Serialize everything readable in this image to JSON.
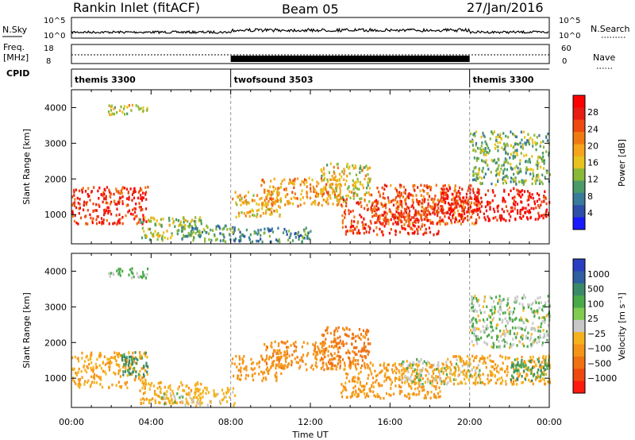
{
  "header": {
    "station": "Rankin Inlet (fitACF)",
    "beam": "Beam 05",
    "date": "27/Jan/2016"
  },
  "summary_panels": {
    "nsky": {
      "label": "N.Sky",
      "scale_top": "10^5",
      "scale_bottom": "10^0"
    },
    "nsearch": {
      "label": "N.Search",
      "scale_top": "10^5",
      "scale_bottom": "10^0"
    },
    "freq": {
      "label_line1": "Freq.",
      "label_line2": "[MHz]",
      "scale_top": "18",
      "scale_bottom": "8"
    },
    "nave": {
      "label": "Nave",
      "scale_top": "60",
      "scale_bottom": "0"
    },
    "cpid": {
      "label": "CPID",
      "segments": [
        {
          "name": "themis 3300",
          "start_hour": 0,
          "end_hour": 8
        },
        {
          "name": "twofsound 3503",
          "start_hour": 8,
          "end_hour": 20
        },
        {
          "name": "themis 3300",
          "start_hour": 20,
          "end_hour": 24
        }
      ]
    }
  },
  "chart_data": [
    {
      "type": "heatmap",
      "title": "",
      "xlabel": "Time UT",
      "ylabel": "Slant Range [km]",
      "x_ticks": [
        "00:00",
        "04:00",
        "08:00",
        "12:00",
        "16:00",
        "20:00",
        "00:00"
      ],
      "x_range_hours": [
        0,
        24
      ],
      "y_ticks": [
        1000,
        2000,
        3000,
        4000
      ],
      "ylim": [
        180,
        4500
      ],
      "colorbar": {
        "label": "Power [dB]",
        "ticks": [
          "4",
          "8",
          "12",
          "16",
          "20",
          "24",
          "28"
        ],
        "colors": [
          "#1a1aff",
          "#2d4fa8",
          "#3a7a9a",
          "#4a9a6a",
          "#8ab838",
          "#e8c21e",
          "#f5a41c",
          "#f07a12",
          "#ee4a10",
          "#e81c10",
          "#ff0000"
        ]
      },
      "echo_regions": [
        {
          "t0": 0.0,
          "t1": 3.8,
          "r0": 700,
          "r1": 1750,
          "value": 27
        },
        {
          "t0": 3.4,
          "t1": 6.5,
          "r0": 250,
          "r1": 900,
          "value": 14
        },
        {
          "t0": 5.5,
          "t1": 8.2,
          "r0": 200,
          "r1": 700,
          "value": 10
        },
        {
          "t0": 1.8,
          "t1": 3.8,
          "r0": 3750,
          "r1": 4050,
          "value": 16
        },
        {
          "t0": 8.0,
          "t1": 10.5,
          "r0": 900,
          "r1": 1600,
          "value": 18
        },
        {
          "t0": 9.5,
          "t1": 13.5,
          "r0": 1200,
          "r1": 2000,
          "value": 20
        },
        {
          "t0": 8.0,
          "t1": 12.0,
          "r0": 200,
          "r1": 600,
          "value": 9
        },
        {
          "t0": 12.5,
          "t1": 15.0,
          "r0": 1300,
          "r1": 2400,
          "value": 16
        },
        {
          "t0": 13.5,
          "t1": 18.5,
          "r0": 400,
          "r1": 1400,
          "value": 26
        },
        {
          "t0": 15.0,
          "t1": 20.5,
          "r0": 700,
          "r1": 1800,
          "value": 24
        },
        {
          "t0": 18.5,
          "t1": 24.0,
          "r0": 800,
          "r1": 1700,
          "value": 29
        },
        {
          "t0": 20.0,
          "t1": 24.0,
          "r0": 1800,
          "r1": 3300,
          "value": 12
        }
      ]
    },
    {
      "type": "heatmap",
      "title": "",
      "xlabel": "Time UT",
      "ylabel": "Slant Range [km]",
      "x_ticks": [
        "00:00",
        "04:00",
        "08:00",
        "12:00",
        "16:00",
        "20:00",
        "00:00"
      ],
      "x_range_hours": [
        0,
        24
      ],
      "y_ticks": [
        1000,
        2000,
        3000,
        4000
      ],
      "ylim": [
        180,
        4500
      ],
      "colorbar": {
        "label": "Velocity [m s⁻¹]",
        "ticks": [
          "1000",
          "500",
          "100",
          "25",
          "−25",
          "−100",
          "−500",
          "−1000"
        ],
        "colors": [
          "#2a3fc0",
          "#2f5fa0",
          "#3a8a6a",
          "#4aaa4a",
          "#80cc50",
          "#c8c8c8",
          "#f5b21c",
          "#f59418",
          "#f07212",
          "#ee4a10",
          "#ff1a10"
        ]
      },
      "echo_regions": [
        {
          "t0": 0.0,
          "t1": 3.8,
          "r0": 700,
          "r1": 1700,
          "value": -150
        },
        {
          "t0": 2.5,
          "t1": 3.8,
          "r0": 1000,
          "r1": 1700,
          "value": 200
        },
        {
          "t0": 3.4,
          "t1": 6.5,
          "r0": 250,
          "r1": 900,
          "value": -120
        },
        {
          "t0": 4.5,
          "t1": 5.6,
          "r0": 250,
          "r1": 550,
          "value": 0
        },
        {
          "t0": 5.5,
          "t1": 8.2,
          "r0": 200,
          "r1": 700,
          "value": -80
        },
        {
          "t0": 1.8,
          "t1": 3.8,
          "r0": 3750,
          "r1": 4050,
          "value": 60
        },
        {
          "t0": 8.0,
          "t1": 10.5,
          "r0": 900,
          "r1": 1600,
          "value": -250
        },
        {
          "t0": 9.5,
          "t1": 13.5,
          "r0": 1200,
          "r1": 2000,
          "value": -300
        },
        {
          "t0": 12.5,
          "t1": 15.0,
          "r0": 1300,
          "r1": 2400,
          "value": -400
        },
        {
          "t0": 13.5,
          "t1": 18.5,
          "r0": 400,
          "r1": 1400,
          "value": -200
        },
        {
          "t0": 16.5,
          "t1": 20.5,
          "r0": 800,
          "r1": 1500,
          "value": 0
        },
        {
          "t0": 18.5,
          "t1": 24.0,
          "r0": 800,
          "r1": 1600,
          "value": -150
        },
        {
          "t0": 22.0,
          "t1": 24.0,
          "r0": 900,
          "r1": 1500,
          "value": 150
        },
        {
          "t0": 20.0,
          "t1": 24.0,
          "r0": 1800,
          "r1": 3300,
          "value": 30
        }
      ]
    }
  ]
}
